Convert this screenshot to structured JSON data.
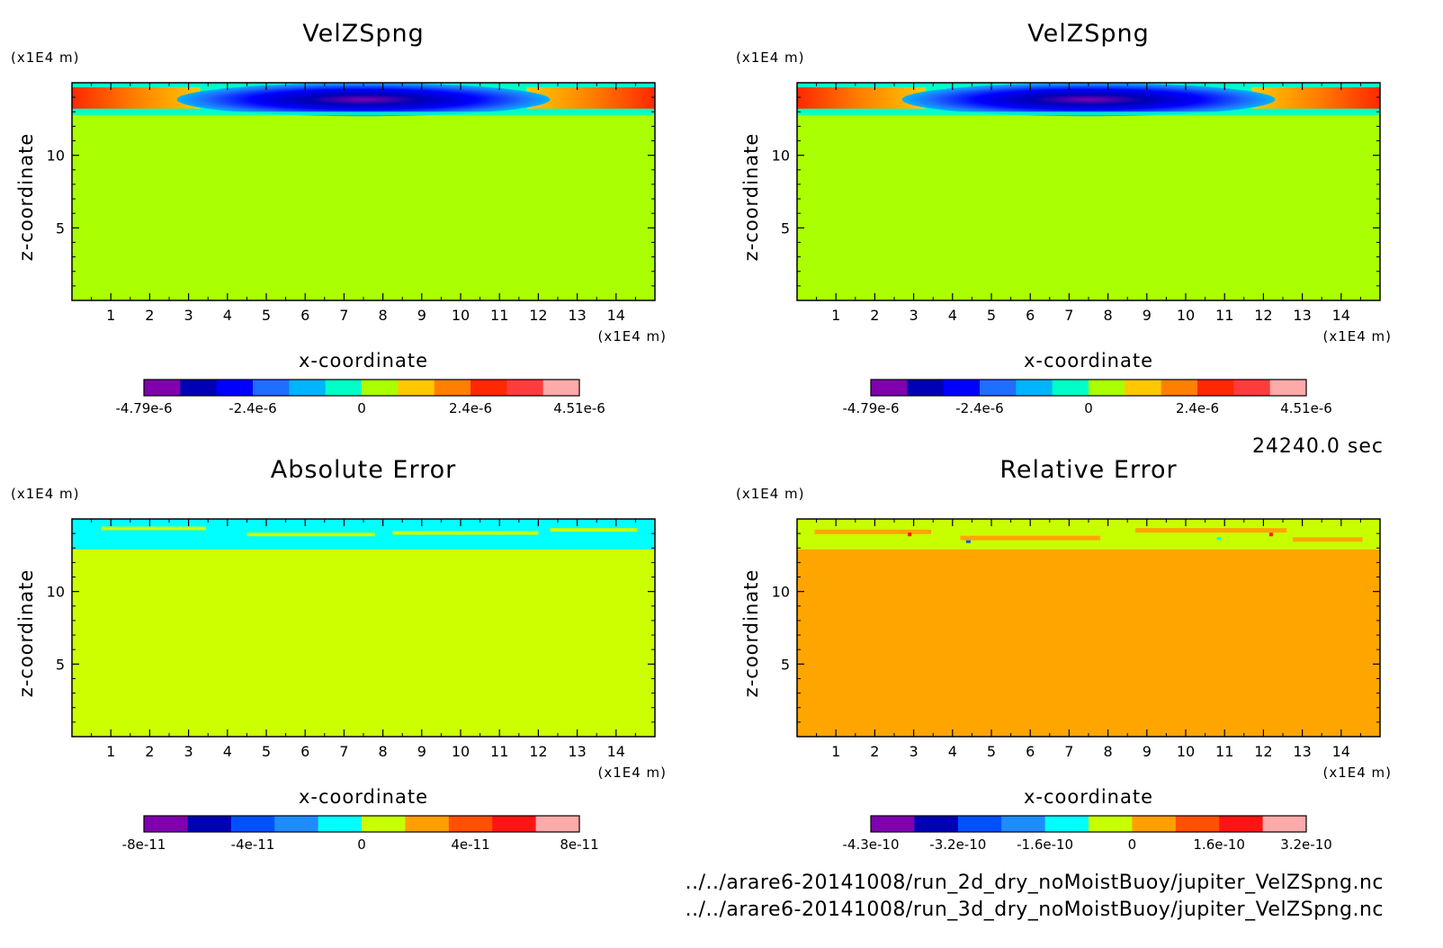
{
  "time_label": "24240.0 sec",
  "footer": {
    "file1": "../../arare6-20141008/run_2d_dry_noMoistBuoy/jupiter_VelZSpng.nc",
    "file2": "../../arare6-20141008/run_3d_dry_noMoistBuoy/jupiter_VelZSpng.nc"
  },
  "chart_data": [
    {
      "type": "heatmap",
      "title": "VelZSpng",
      "xlabel": "x-coordinate",
      "ylabel": "z-coordinate",
      "x_unit": "(x1E4 m)",
      "y_unit": "(x1E4 m)",
      "xlim": [
        0,
        15
      ],
      "ylim": [
        0,
        15
      ],
      "x_ticks": [
        "1",
        "2",
        "3",
        "4",
        "5",
        "6",
        "7",
        "8",
        "9",
        "10",
        "11",
        "12",
        "13",
        "14"
      ],
      "y_ticks": [
        "5",
        "10"
      ],
      "colorbar": {
        "colors": [
          "#8000b0",
          "#0000b4",
          "#0000ff",
          "#1e6eff",
          "#00b4ff",
          "#00ffc8",
          "#aaff00",
          "#ffc800",
          "#ff8000",
          "#ff2800",
          "#ff3c3c",
          "#ffaaaa"
        ],
        "tick_labels": [
          "-4.79e-6",
          "-2.4e-6",
          "0",
          "2.4e-6",
          "4.51e-6"
        ]
      },
      "background_color": "#aaff00"
    },
    {
      "type": "heatmap",
      "title": "VelZSpng",
      "xlabel": "x-coordinate",
      "ylabel": "z-coordinate",
      "x_unit": "(x1E4 m)",
      "y_unit": "(x1E4 m)",
      "xlim": [
        0,
        15
      ],
      "ylim": [
        0,
        15
      ],
      "x_ticks": [
        "1",
        "2",
        "3",
        "4",
        "5",
        "6",
        "7",
        "8",
        "9",
        "10",
        "11",
        "12",
        "13",
        "14"
      ],
      "y_ticks": [
        "5",
        "10"
      ],
      "colorbar": {
        "colors": [
          "#8000b0",
          "#0000b4",
          "#0000ff",
          "#1e6eff",
          "#00b4ff",
          "#00ffc8",
          "#aaff00",
          "#ffc800",
          "#ff8000",
          "#ff2800",
          "#ff3c3c",
          "#ffaaaa"
        ],
        "tick_labels": [
          "-4.79e-6",
          "-2.4e-6",
          "0",
          "2.4e-6",
          "4.51e-6"
        ]
      },
      "background_color": "#aaff00"
    },
    {
      "type": "heatmap",
      "title": "Absolute Error",
      "xlabel": "x-coordinate",
      "ylabel": "z-coordinate",
      "x_unit": "(x1E4 m)",
      "y_unit": "(x1E4 m)",
      "xlim": [
        0,
        15
      ],
      "ylim": [
        0,
        15
      ],
      "x_ticks": [
        "1",
        "2",
        "3",
        "4",
        "5",
        "6",
        "7",
        "8",
        "9",
        "10",
        "11",
        "12",
        "13",
        "14"
      ],
      "y_ticks": [
        "5",
        "10"
      ],
      "colorbar": {
        "colors": [
          "#8000b0",
          "#0000b4",
          "#0050ff",
          "#1e8cff",
          "#00ffff",
          "#c8ff00",
          "#ffa000",
          "#ff5000",
          "#ff1414",
          "#ffaaaa"
        ],
        "tick_labels": [
          "-8e-11",
          "-4e-11",
          "0",
          "4e-11",
          "8e-11"
        ]
      },
      "background_color": "#ccff00"
    },
    {
      "type": "heatmap",
      "title": "Relative Error",
      "xlabel": "x-coordinate",
      "ylabel": "z-coordinate",
      "x_unit": "(x1E4 m)",
      "y_unit": "(x1E4 m)",
      "xlim": [
        0,
        15
      ],
      "ylim": [
        0,
        15
      ],
      "x_ticks": [
        "1",
        "2",
        "3",
        "4",
        "5",
        "6",
        "7",
        "8",
        "9",
        "10",
        "11",
        "12",
        "13",
        "14"
      ],
      "y_ticks": [
        "5",
        "10"
      ],
      "colorbar": {
        "colors": [
          "#8000b0",
          "#0000b4",
          "#0050ff",
          "#1e8cff",
          "#00ffff",
          "#c8ff00",
          "#ffa000",
          "#ff5000",
          "#ff1414",
          "#ffaaaa"
        ],
        "tick_labels": [
          "-4.3e-10",
          "-3.2e-10",
          "-1.6e-10",
          "0",
          "1.6e-10",
          "3.2e-10"
        ]
      },
      "background_color": "#ffa500"
    }
  ]
}
